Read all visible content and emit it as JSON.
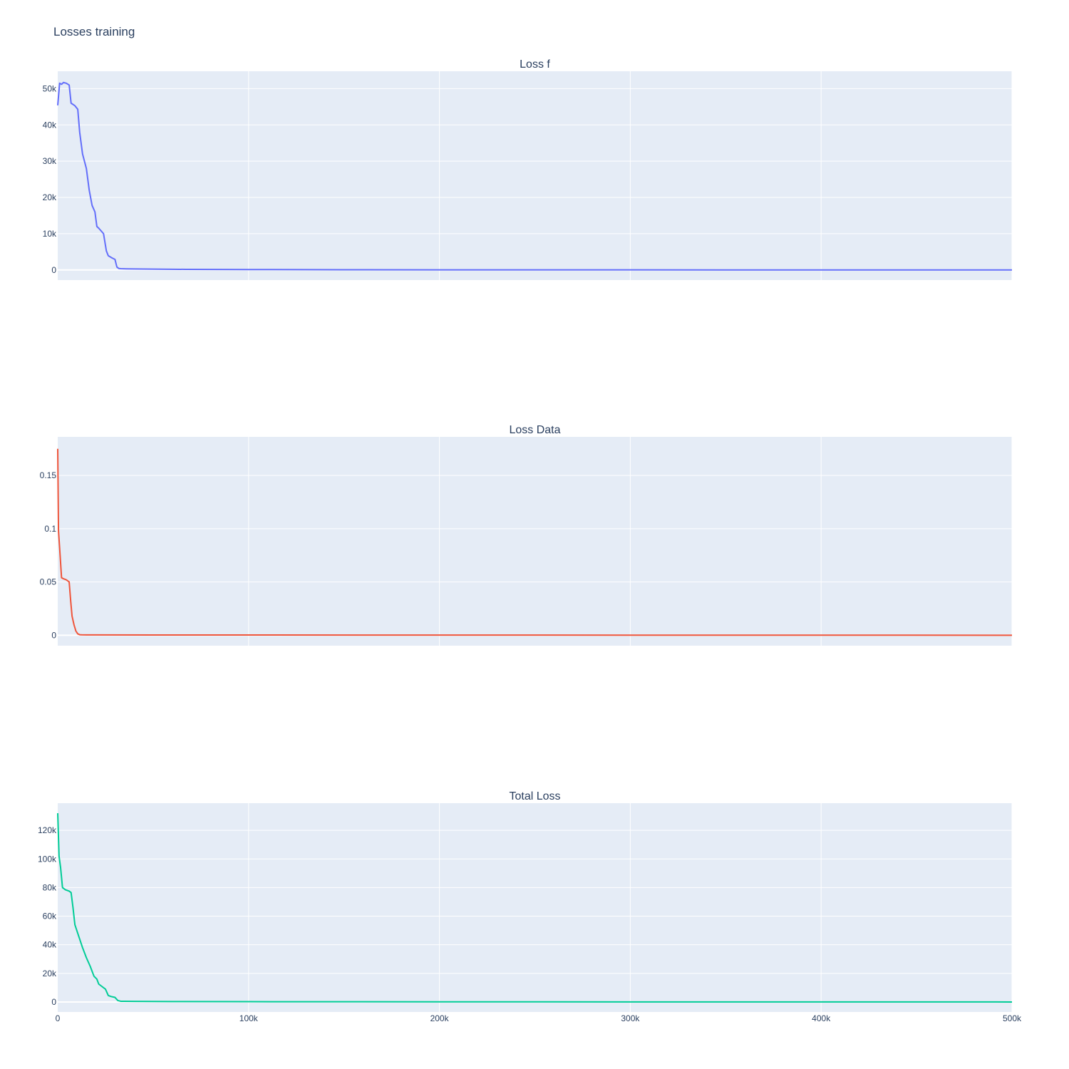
{
  "title": "Losses training",
  "chart_data": [
    {
      "type": "line",
      "title": "Loss f",
      "color": "#636efa",
      "xlim": [
        0,
        500000
      ],
      "ylim": [
        -2800,
        54800
      ],
      "yticks": [
        0,
        10000,
        20000,
        30000,
        40000,
        50000
      ],
      "ytick_labels": [
        "0",
        "10k",
        "20k",
        "30k",
        "40k",
        "50k"
      ],
      "x": [
        0,
        1000,
        2000,
        3000,
        4500,
        6000,
        7000,
        9000,
        10500,
        11500,
        13000,
        15000,
        16500,
        18000,
        19500,
        20500,
        21500,
        24000,
        25500,
        26500,
        28500,
        30000,
        31000,
        32000,
        33000,
        36000,
        40000,
        50000,
        67000,
        100000,
        150000,
        200000,
        300000,
        400000,
        500000
      ],
      "y": [
        45400,
        51500,
        51200,
        51700,
        51500,
        51000,
        46000,
        45300,
        44300,
        38000,
        32000,
        28000,
        22000,
        17800,
        16000,
        12000,
        11500,
        10000,
        5200,
        3900,
        3300,
        2900,
        800,
        400,
        350,
        300,
        280,
        230,
        150,
        100,
        50,
        30,
        15,
        5,
        1
      ],
      "grid": true,
      "legend": "none"
    },
    {
      "type": "line",
      "title": "Loss Data",
      "color": "#ef553b",
      "xlim": [
        0,
        500000
      ],
      "ylim": [
        -0.0098,
        0.1862
      ],
      "yticks": [
        0,
        0.05,
        0.1,
        0.15
      ],
      "ytick_labels": [
        "0",
        "0.05",
        "0.1",
        "0.15"
      ],
      "x": [
        0,
        400,
        1000,
        2000,
        3000,
        4500,
        6000,
        6800,
        7500,
        8500,
        9500,
        10500,
        11500,
        12500,
        15000,
        20000,
        50000,
        100000,
        200000,
        300000,
        400000,
        500000
      ],
      "y": [
        0.175,
        0.098,
        0.082,
        0.054,
        0.053,
        0.052,
        0.05,
        0.032,
        0.018,
        0.01,
        0.004,
        0.0013,
        0.0005,
        0.0004,
        0.0003,
        0.0003,
        0.00025,
        0.0002,
        0.00015,
        0.0001,
        5e-05,
        1e-05
      ],
      "grid": true,
      "legend": "none"
    },
    {
      "type": "line",
      "title": "Total Loss",
      "color": "#00cc96",
      "xlim": [
        0,
        500000
      ],
      "ylim": [
        -7000,
        139000
      ],
      "yticks": [
        0,
        20000,
        40000,
        60000,
        80000,
        100000,
        120000
      ],
      "ytick_labels": [
        "0",
        "20k",
        "40k",
        "60k",
        "80k",
        "100k",
        "120k"
      ],
      "xticks": [
        0,
        100000,
        200000,
        300000,
        400000,
        500000
      ],
      "xtick_labels": [
        "0",
        "100k",
        "200k",
        "300k",
        "400k",
        "500k"
      ],
      "x": [
        0,
        700,
        1500,
        2500,
        4000,
        6000,
        7000,
        8000,
        9000,
        11000,
        13000,
        15000,
        17000,
        19000,
        20500,
        21500,
        23000,
        25000,
        26500,
        28000,
        30000,
        31500,
        33000,
        35000,
        40000,
        60000,
        100000,
        200000,
        300000,
        400000,
        500000
      ],
      "y": [
        132000,
        102000,
        94000,
        80000,
        78500,
        77500,
        76500,
        66000,
        54000,
        46000,
        38000,
        31000,
        25000,
        18000,
        16000,
        12500,
        11000,
        9000,
        4500,
        3800,
        3200,
        1000,
        500,
        450,
        400,
        300,
        200,
        120,
        60,
        30,
        5
      ],
      "grid": true,
      "legend": "none"
    }
  ]
}
